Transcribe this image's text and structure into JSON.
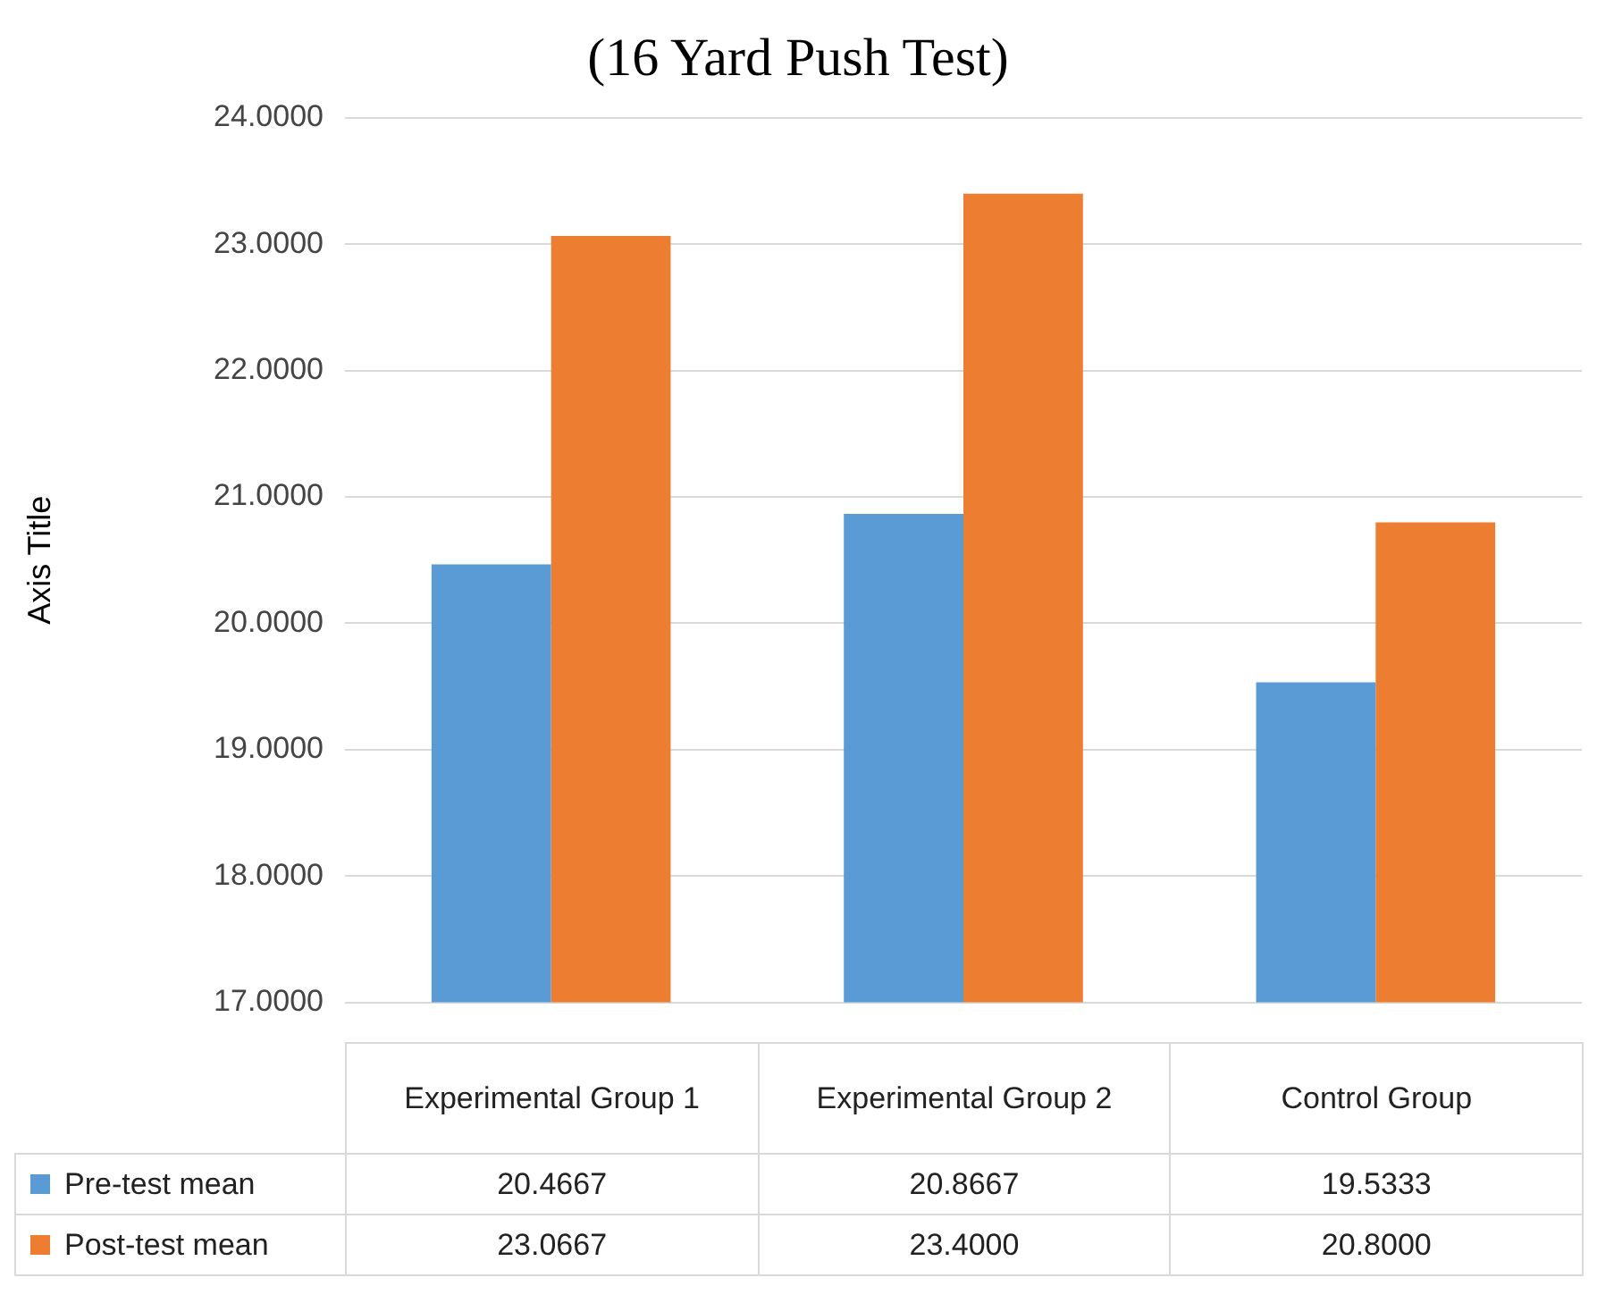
{
  "chart_data": {
    "type": "bar",
    "title": "(16 Yard Push Test)",
    "ylabel": "Axis Title",
    "categories": [
      "Experimental Group 1",
      "Experimental Group 2",
      "Control Group"
    ],
    "series": [
      {
        "name": "Pre-test mean",
        "color": "#5b9bd5",
        "values": [
          20.4667,
          20.8667,
          19.5333
        ],
        "value_labels": [
          "20.4667",
          "20.8667",
          "19.5333"
        ]
      },
      {
        "name": "Post-test mean",
        "color": "#ed7d31",
        "values": [
          23.0667,
          23.4,
          20.8
        ],
        "value_labels": [
          "23.0667",
          "23.4000",
          "20.8000"
        ]
      }
    ],
    "ylim": [
      17,
      24
    ],
    "yticks": [
      {
        "value": 17,
        "label": "17.0000"
      },
      {
        "value": 18,
        "label": "18.0000"
      },
      {
        "value": 19,
        "label": "19.0000"
      },
      {
        "value": 20,
        "label": "20.0000"
      },
      {
        "value": 21,
        "label": "21.0000"
      },
      {
        "value": 22,
        "label": "22.0000"
      },
      {
        "value": 23,
        "label": "23.0000"
      },
      {
        "value": 24,
        "label": "24.0000"
      }
    ],
    "grid": "y",
    "legend": "bottom"
  }
}
